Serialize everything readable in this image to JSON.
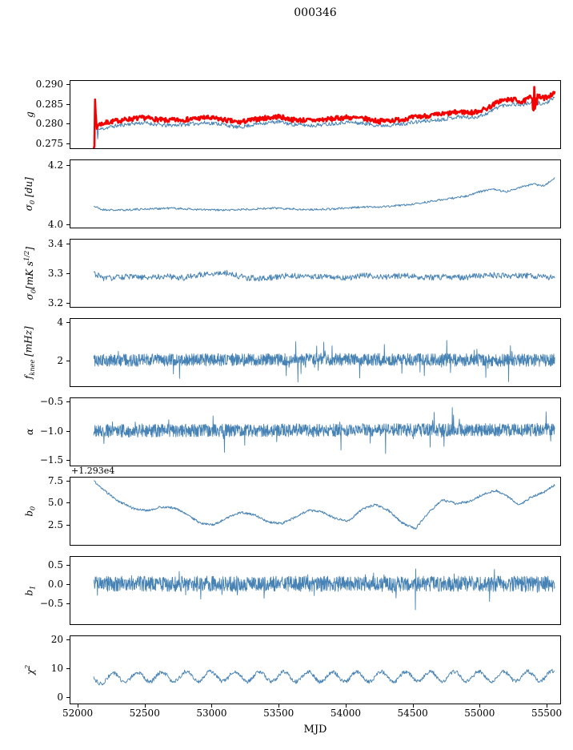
{
  "chart_data": {
    "type": "line",
    "title": "000346",
    "xlabel": "MJD",
    "xlim": [
      51946,
      55601
    ],
    "x_ticks": [
      {
        "v": 52000,
        "label": "52000"
      },
      {
        "v": 52500,
        "label": "52500"
      },
      {
        "v": 53000,
        "label": "53000"
      },
      {
        "v": 53500,
        "label": "53500"
      },
      {
        "v": 54000,
        "label": "54000"
      },
      {
        "v": 54500,
        "label": "54500"
      },
      {
        "v": 55000,
        "label": "55000"
      },
      {
        "v": 55500,
        "label": "55500"
      }
    ],
    "data_xrange": [
      52120,
      55560
    ],
    "panels": [
      {
        "id": "g",
        "ylabel_html": "g",
        "ylim": [
          0.2737,
          0.2909
        ],
        "y_ticks": [
          {
            "v": 0.275,
            "label": "0.275"
          },
          {
            "v": 0.28,
            "label": "0.280"
          },
          {
            "v": 0.285,
            "label": "0.285"
          },
          {
            "v": 0.29,
            "label": "0.290"
          }
        ],
        "series": [
          {
            "name": "g-smooth",
            "color": "#4682b4",
            "lw": 1,
            "seed": 11,
            "n": 700,
            "noise": 0.0005,
            "noise_regions": [
              [
                52120,
                52150,
                0.003
              ]
            ],
            "anchors": [
              [
                52120,
                0.279
              ],
              [
                52160,
                0.2785
              ],
              [
                52250,
                0.2792
              ],
              [
                52400,
                0.28
              ],
              [
                52500,
                0.2802
              ],
              [
                52650,
                0.2795
              ],
              [
                52800,
                0.2798
              ],
              [
                52950,
                0.2802
              ],
              [
                53050,
                0.28
              ],
              [
                53200,
                0.279
              ],
              [
                53350,
                0.28
              ],
              [
                53500,
                0.2805
              ],
              [
                53600,
                0.2798
              ],
              [
                53750,
                0.2795
              ],
              [
                53900,
                0.28
              ],
              [
                54000,
                0.2804
              ],
              [
                54150,
                0.28
              ],
              [
                54250,
                0.2795
              ],
              [
                54400,
                0.2798
              ],
              [
                54550,
                0.2805
              ],
              [
                54700,
                0.281
              ],
              [
                54850,
                0.2818
              ],
              [
                54950,
                0.2815
              ],
              [
                55050,
                0.2825
              ],
              [
                55150,
                0.2845
              ],
              [
                55250,
                0.285
              ],
              [
                55320,
                0.2848
              ],
              [
                55400,
                0.2855
              ],
              [
                55480,
                0.285
              ],
              [
                55560,
                0.2865
              ]
            ]
          },
          {
            "name": "g-raw",
            "color": "#f40000",
            "lw": 2.6,
            "seed": 7,
            "n": 700,
            "noise": 0.0006,
            "noise_regions": [
              [
                52120,
                52150,
                0.0065
              ],
              [
                55390,
                55430,
                0.004
              ]
            ],
            "anchors": [
              [
                52120,
                0.28
              ],
              [
                52160,
                0.2798
              ],
              [
                52250,
                0.2805
              ],
              [
                52400,
                0.2812
              ],
              [
                52500,
                0.2815
              ],
              [
                52650,
                0.2808
              ],
              [
                52800,
                0.281
              ],
              [
                52950,
                0.2815
              ],
              [
                53050,
                0.2812
              ],
              [
                53200,
                0.2803
              ],
              [
                53350,
                0.2812
              ],
              [
                53500,
                0.2818
              ],
              [
                53600,
                0.281
              ],
              [
                53750,
                0.2808
              ],
              [
                53900,
                0.2812
              ],
              [
                54000,
                0.2816
              ],
              [
                54150,
                0.2812
              ],
              [
                54250,
                0.2806
              ],
              [
                54400,
                0.281
              ],
              [
                54550,
                0.2818
              ],
              [
                54700,
                0.2823
              ],
              [
                54850,
                0.283
              ],
              [
                54950,
                0.2828
              ],
              [
                55050,
                0.2838
              ],
              [
                55150,
                0.2858
              ],
              [
                55250,
                0.2862
              ],
              [
                55320,
                0.2855
              ],
              [
                55400,
                0.2872
              ],
              [
                55480,
                0.2865
              ],
              [
                55560,
                0.2878
              ]
            ]
          }
        ]
      },
      {
        "id": "sigma0-du",
        "ylabel_html": "σ<sub>0</sub> [du]",
        "ylim": [
          3.99,
          4.215
        ],
        "y_ticks": [
          {
            "v": 4.0,
            "label": "4.0"
          },
          {
            "v": 4.2,
            "label": "4.2"
          }
        ],
        "series": [
          {
            "name": "sigma0-du",
            "color": "#4682b4",
            "lw": 1,
            "seed": 21,
            "n": 700,
            "noise": 0.0035,
            "anchors": [
              [
                52120,
                4.062
              ],
              [
                52180,
                4.05
              ],
              [
                52300,
                4.048
              ],
              [
                52500,
                4.052
              ],
              [
                52700,
                4.055
              ],
              [
                52900,
                4.05
              ],
              [
                53100,
                4.048
              ],
              [
                53300,
                4.052
              ],
              [
                53500,
                4.055
              ],
              [
                53700,
                4.05
              ],
              [
                53900,
                4.052
              ],
              [
                54100,
                4.058
              ],
              [
                54300,
                4.06
              ],
              [
                54500,
                4.068
              ],
              [
                54700,
                4.082
              ],
              [
                54900,
                4.095
              ],
              [
                55000,
                4.11
              ],
              [
                55100,
                4.118
              ],
              [
                55200,
                4.11
              ],
              [
                55300,
                4.125
              ],
              [
                55400,
                4.135
              ],
              [
                55480,
                4.13
              ],
              [
                55560,
                4.155
              ]
            ]
          }
        ]
      },
      {
        "id": "sigma0-mks",
        "ylabel_html": "σ<sub>0</sub>[mK s<sup>1/2</sup>]",
        "ylim": [
          3.185,
          3.415
        ],
        "y_ticks": [
          {
            "v": 3.2,
            "label": "3.2"
          },
          {
            "v": 3.3,
            "label": "3.3"
          },
          {
            "v": 3.4,
            "label": "3.4"
          }
        ],
        "series": [
          {
            "name": "sigma0-mks",
            "color": "#4682b4",
            "lw": 1,
            "seed": 31,
            "n": 700,
            "noise": 0.01,
            "anchors": [
              [
                52120,
                3.3
              ],
              [
                52200,
                3.282
              ],
              [
                52350,
                3.288
              ],
              [
                52500,
                3.285
              ],
              [
                52650,
                3.29
              ],
              [
                52800,
                3.285
              ],
              [
                52950,
                3.298
              ],
              [
                53100,
                3.302
              ],
              [
                53250,
                3.285
              ],
              [
                53400,
                3.282
              ],
              [
                53550,
                3.292
              ],
              [
                53700,
                3.29
              ],
              [
                53850,
                3.288
              ],
              [
                54000,
                3.285
              ],
              [
                54150,
                3.292
              ],
              [
                54300,
                3.288
              ],
              [
                54450,
                3.292
              ],
              [
                54600,
                3.285
              ],
              [
                54750,
                3.288
              ],
              [
                54900,
                3.285
              ],
              [
                55050,
                3.295
              ],
              [
                55200,
                3.29
              ],
              [
                55350,
                3.292
              ],
              [
                55560,
                3.285
              ]
            ]
          }
        ]
      },
      {
        "id": "fknee",
        "ylabel_html": "f<sub>knee</sub> [mHz]",
        "ylim": [
          0.65,
          4.16
        ],
        "y_ticks": [
          {
            "v": 2,
            "label": "2"
          },
          {
            "v": 4,
            "label": "4"
          }
        ],
        "series": [
          {
            "name": "fknee",
            "color": "#4682b4",
            "lw": 0.9,
            "seed": 41,
            "n": 1500,
            "noise": 0.33,
            "spike": {
              "prob": 0.02,
              "amp": 1.3
            },
            "anchors": [
              [
                52120,
                2.0
              ],
              [
                53800,
                2.05
              ],
              [
                55560,
                2.0
              ]
            ]
          }
        ]
      },
      {
        "id": "alpha",
        "ylabel_html": "α",
        "ylim": [
          -1.59,
          -0.447
        ],
        "y_ticks": [
          {
            "v": -0.5,
            "label": "−0.5"
          },
          {
            "v": -1.0,
            "label": "−1.0"
          },
          {
            "v": -1.5,
            "label": "−1.5"
          }
        ],
        "series": [
          {
            "name": "alpha",
            "color": "#4682b4",
            "lw": 0.9,
            "seed": 51,
            "n": 1500,
            "noise": 0.11,
            "spike": {
              "prob": 0.02,
              "amp": 0.3
            },
            "anchors": [
              [
                52120,
                -1.0
              ],
              [
                53800,
                -0.99
              ],
              [
                55560,
                -0.98
              ]
            ]
          }
        ]
      },
      {
        "id": "b0",
        "ylabel_html": "b<sub>0</sub>",
        "offset_text": "+1.293e4",
        "ylim": [
          0.18,
          7.86
        ],
        "y_ticks": [
          {
            "v": 2.5,
            "label": "2.5"
          },
          {
            "v": 5.0,
            "label": "5.0"
          },
          {
            "v": 7.5,
            "label": "7.5"
          }
        ],
        "series": [
          {
            "name": "b0",
            "color": "#4682b4",
            "lw": 1,
            "seed": 61,
            "n": 800,
            "noise": 0.13,
            "anchors": [
              [
                52120,
                7.5
              ],
              [
                52180,
                6.6
              ],
              [
                52300,
                5.2
              ],
              [
                52420,
                4.3
              ],
              [
                52520,
                4.1
              ],
              [
                52620,
                4.5
              ],
              [
                52720,
                4.4
              ],
              [
                52820,
                3.6
              ],
              [
                52920,
                2.6
              ],
              [
                53020,
                2.5
              ],
              [
                53120,
                3.3
              ],
              [
                53220,
                3.9
              ],
              [
                53320,
                3.6
              ],
              [
                53420,
                2.8
              ],
              [
                53520,
                2.6
              ],
              [
                53620,
                3.3
              ],
              [
                53720,
                4.1
              ],
              [
                53820,
                4.0
              ],
              [
                53920,
                3.2
              ],
              [
                54020,
                2.9
              ],
              [
                54120,
                4.2
              ],
              [
                54220,
                4.8
              ],
              [
                54320,
                4.1
              ],
              [
                54420,
                2.7
              ],
              [
                54520,
                2.0
              ],
              [
                54620,
                3.9
              ],
              [
                54720,
                5.3
              ],
              [
                54820,
                4.9
              ],
              [
                54920,
                5.1
              ],
              [
                55020,
                5.9
              ],
              [
                55120,
                6.4
              ],
              [
                55220,
                5.6
              ],
              [
                55300,
                4.7
              ],
              [
                55380,
                5.6
              ],
              [
                55480,
                6.2
              ],
              [
                55560,
                7.0
              ]
            ]
          }
        ]
      },
      {
        "id": "b1",
        "ylabel_html": "b<sub>1</sub>",
        "ylim": [
          -1.05,
          0.7
        ],
        "y_ticks": [
          {
            "v": 0.5,
            "label": "0.5"
          },
          {
            "v": 0.0,
            "label": "0.0"
          },
          {
            "v": -0.5,
            "label": "−0.5"
          }
        ],
        "series": [
          {
            "name": "b1",
            "color": "#4682b4",
            "lw": 0.9,
            "seed": 71,
            "n": 1500,
            "noise": 0.2,
            "spike": {
              "prob": 0.03,
              "amp": 0.3
            },
            "events": [
              [
                54520,
                -0.8
              ]
            ],
            "anchors": [
              [
                52120,
                0.0
              ],
              [
                55560,
                0.0
              ]
            ]
          }
        ]
      },
      {
        "id": "chi2",
        "ylabel_html": "χ<sup>2</sup>",
        "ylim": [
          -2.2,
          21.1
        ],
        "y_ticks": [
          {
            "v": 0,
            "label": "0"
          },
          {
            "v": 10,
            "label": "10"
          },
          {
            "v": 20,
            "label": "20"
          }
        ],
        "series": [
          {
            "name": "chi2",
            "color": "#4682b4",
            "lw": 0.9,
            "seed": 81,
            "n": 900,
            "noise": 0.7,
            "periodic": {
              "period": 182,
              "amp": 1.7,
              "phase": 0.5
            },
            "anchors": [
              [
                52120,
                6.2
              ],
              [
                52400,
                7.0
              ],
              [
                53000,
                7.2
              ],
              [
                54000,
                7.0
              ],
              [
                54800,
                7.2
              ],
              [
                55560,
                7.3
              ]
            ]
          }
        ]
      }
    ]
  }
}
